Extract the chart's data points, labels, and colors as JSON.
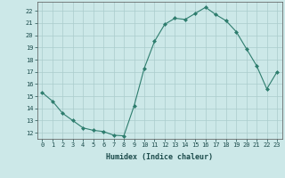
{
  "x": [
    0,
    1,
    2,
    3,
    4,
    5,
    6,
    7,
    8,
    9,
    10,
    11,
    12,
    13,
    14,
    15,
    16,
    17,
    18,
    19,
    20,
    21,
    22,
    23
  ],
  "y": [
    15.3,
    14.6,
    13.6,
    13.0,
    12.4,
    12.2,
    12.1,
    11.8,
    11.75,
    14.2,
    17.3,
    19.5,
    20.9,
    21.4,
    21.3,
    21.8,
    22.3,
    21.7,
    21.2,
    20.3,
    18.9,
    17.5,
    15.6,
    17.0
  ],
  "line_color": "#2e7d6e",
  "marker": "D",
  "markersize": 2.0,
  "bg_color": "#cce8e8",
  "grid_color": "#aacccc",
  "xlabel": "Humidex (Indice chaleur)",
  "ylabel": "",
  "xlim": [
    -0.5,
    23.5
  ],
  "ylim": [
    11.5,
    22.75
  ],
  "yticks": [
    12,
    13,
    14,
    15,
    16,
    17,
    18,
    19,
    20,
    21,
    22
  ],
  "xticks": [
    0,
    1,
    2,
    3,
    4,
    5,
    6,
    7,
    8,
    9,
    10,
    11,
    12,
    13,
    14,
    15,
    16,
    17,
    18,
    19,
    20,
    21,
    22,
    23
  ],
  "tick_fontsize": 5.0,
  "xlabel_fontsize": 6.0,
  "linewidth": 0.8
}
